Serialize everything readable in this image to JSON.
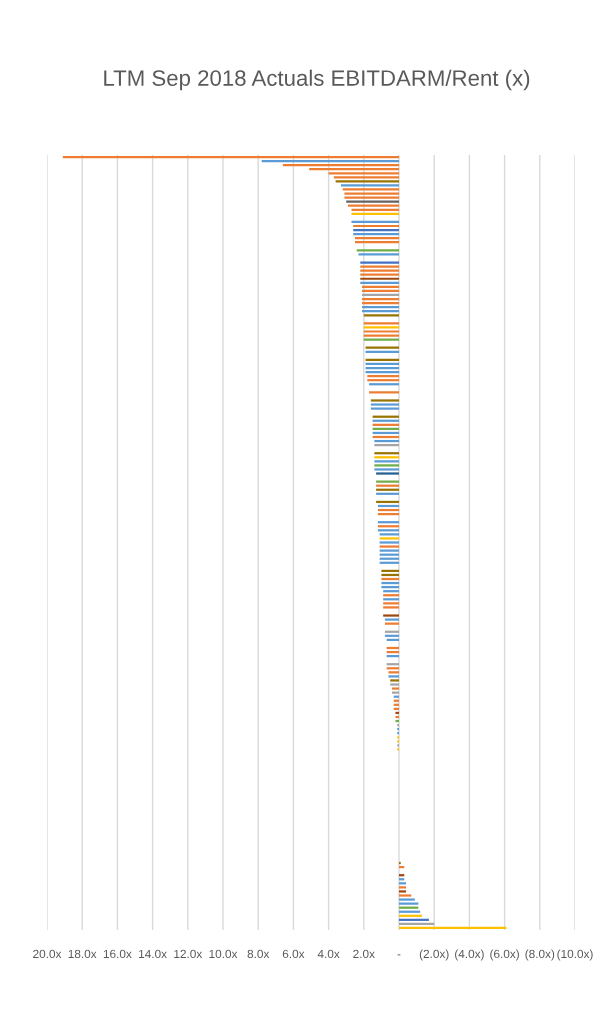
{
  "chart_data": {
    "type": "bar",
    "orientation": "horizontal",
    "title": "LTM Sep 2018 Actuals EBITDARM/Rent (x)",
    "categories": [
      null,
      null,
      null,
      null,
      null,
      null,
      null,
      null,
      null,
      null,
      null,
      null,
      null,
      null,
      null,
      null,
      null,
      null,
      null,
      null,
      null,
      null,
      null,
      null,
      null,
      null,
      null,
      null,
      null,
      null,
      null,
      null,
      null,
      null,
      null,
      null,
      null,
      null,
      null,
      null,
      null,
      null,
      null,
      null,
      null,
      null,
      null,
      null,
      null,
      null,
      null,
      null,
      null,
      null,
      null,
      null,
      null,
      null,
      null,
      null,
      null,
      null,
      null,
      null,
      null,
      null,
      null,
      null,
      null,
      null,
      null,
      null,
      null,
      null,
      null,
      null,
      null,
      null,
      null,
      null,
      null,
      null,
      null,
      null,
      null,
      null,
      null,
      null,
      null,
      null,
      null,
      null,
      null,
      null,
      null,
      null,
      null,
      null,
      null,
      null,
      null,
      null,
      null,
      null,
      null,
      null,
      null,
      null,
      null,
      null,
      null,
      null,
      null,
      null,
      null,
      null,
      null,
      null,
      null,
      null,
      null,
      null,
      null,
      null,
      null,
      null,
      null,
      null,
      null,
      null,
      null,
      null,
      null,
      null,
      null,
      null,
      null,
      null,
      null,
      null,
      null,
      null,
      null,
      null,
      null,
      null,
      null,
      null,
      null,
      null,
      null,
      null,
      null,
      null,
      null,
      null,
      null,
      null,
      null,
      null,
      null,
      null,
      null,
      null,
      null,
      null,
      null,
      null,
      null,
      null,
      null,
      null,
      null,
      null,
      null,
      null,
      null,
      null,
      null,
      null,
      null,
      null,
      null,
      null,
      null,
      null,
      null,
      null,
      null,
      null,
      null
    ],
    "values": [
      19.1,
      7.8,
      6.6,
      5.1,
      4.0,
      3.7,
      3.6,
      3.3,
      3.2,
      3.1,
      3.1,
      3.0,
      2.9,
      2.7,
      2.7,
      null,
      2.7,
      2.6,
      2.6,
      2.6,
      2.5,
      2.5,
      null,
      2.4,
      2.3,
      null,
      2.2,
      2.2,
      2.2,
      2.2,
      2.2,
      2.2,
      2.1,
      2.1,
      2.1,
      2.1,
      2.1,
      2.1,
      2.1,
      2.0,
      null,
      2.0,
      2.0,
      2.0,
      2.0,
      2.0,
      null,
      1.9,
      1.9,
      null,
      1.9,
      1.9,
      1.9,
      1.9,
      1.8,
      1.8,
      1.7,
      null,
      1.7,
      null,
      1.6,
      1.6,
      1.6,
      null,
      1.5,
      1.5,
      1.5,
      1.5,
      1.5,
      1.5,
      1.4,
      1.4,
      null,
      1.4,
      1.4,
      1.4,
      1.4,
      1.4,
      1.3,
      null,
      1.3,
      1.3,
      1.3,
      1.3,
      null,
      1.3,
      1.2,
      1.2,
      1.2,
      null,
      1.2,
      1.2,
      1.2,
      1.1,
      1.1,
      1.1,
      1.1,
      1.1,
      1.1,
      1.1,
      1.1,
      null,
      1.0,
      1.0,
      1.0,
      1.0,
      1.0,
      0.9,
      0.9,
      0.9,
      0.9,
      0.9,
      null,
      0.9,
      0.8,
      0.8,
      null,
      0.8,
      0.8,
      0.7,
      null,
      0.7,
      0.7,
      0.7,
      null,
      0.7,
      0.7,
      0.6,
      0.6,
      0.5,
      0.5,
      0.4,
      0.4,
      0.3,
      0.3,
      0.3,
      0.3,
      0.2,
      0.2,
      0.2,
      0.1,
      0.1,
      0.1,
      0.1,
      0.1,
      0.1,
      0.1,
      null,
      null,
      null,
      null,
      null,
      null,
      null,
      null,
      null,
      null,
      null,
      null,
      null,
      null,
      null,
      null,
      null,
      null,
      null,
      null,
      null,
      null,
      null,
      null,
      null,
      null,
      null,
      -0.1,
      -0.3,
      null,
      -0.3,
      -0.3,
      -0.4,
      -0.4,
      -0.4,
      -0.7,
      -0.9,
      -1.1,
      -1.1,
      -1.2,
      -1.3,
      -1.7,
      -2.0,
      -6.1
    ],
    "colors": [
      "#ed7d31",
      "#5b9bd5",
      "#ed7d31",
      "#ed7d31",
      "#ed7d31",
      "#ed7d31",
      "#997300",
      "#5b9bd5",
      "#ed7d31",
      "#ed7d31",
      "#ed7d31",
      "#636363",
      "#ed7d31",
      "#ed7d31",
      "#ffc000",
      null,
      "#5b9bd5",
      "#ed7d31",
      "#4472c4",
      "#5b9bd5",
      "#ed7d31",
      "#ed7d31",
      null,
      "#70ad47",
      "#5b9bd5",
      null,
      "#4472c4",
      "#ed7d31",
      "#ed7d31",
      "#ed7d31",
      "#9e480e",
      "#5b9bd5",
      "#ed7d31",
      "#ed7d31",
      "#a5a5a5",
      "#ed7d31",
      "#ed7d31",
      "#5b9bd5",
      "#5b9bd5",
      "#997300",
      null,
      "#ed7d31",
      "#ffc000",
      "#ed7d31",
      "#ed7d31",
      "#70ad47",
      null,
      "#997300",
      "#5b9bd5",
      null,
      "#997300",
      "#5b9bd5",
      "#5b9bd5",
      "#5b9bd5",
      "#ed7d31",
      "#ed7d31",
      "#5b9bd5",
      null,
      "#ed7d31",
      null,
      "#997300",
      "#5b9bd5",
      "#5b9bd5",
      null,
      "#997300",
      "#5b9bd5",
      "#ed7d31",
      "#70ad47",
      "#5b9bd5",
      "#ed7d31",
      "#5b9bd5",
      "#a5a5a5",
      null,
      "#997300",
      "#ffc000",
      "#5b9bd5",
      "#70ad47",
      "#5b9bd5",
      "#255e91",
      null,
      "#70ad47",
      "#ed7d31",
      "#997300",
      "#5b9bd5",
      null,
      "#997300",
      "#5b9bd5",
      "#ed7d31",
      "#ed7d31",
      null,
      "#5b9bd5",
      "#ed7d31",
      "#5b9bd5",
      "#5b9bd5",
      "#ffc000",
      "#5b9bd5",
      "#ed7d31",
      "#5b9bd5",
      "#5b9bd5",
      "#5b9bd5",
      "#5b9bd5",
      null,
      "#997300",
      "#997300",
      "#ed7d31",
      "#5b9bd5",
      "#5b9bd5",
      "#5b9bd5",
      "#ed7d31",
      "#5b9bd5",
      "#ed7d31",
      "#ed7d31",
      null,
      "#9e480e",
      "#5b9bd5",
      "#ed7d31",
      null,
      "#a5a5a5",
      "#5b9bd5",
      "#5b9bd5",
      null,
      "#ed7d31",
      "#ed7d31",
      "#5b9bd5",
      null,
      "#a5a5a5",
      "#ed7d31",
      "#ed7d31",
      "#5b9bd5",
      "#997300",
      "#a5a5a5",
      "#ed7d31",
      "#a5a5a5",
      "#5b9bd5",
      "#ed7d31",
      "#ed7d31",
      "#ed7d31",
      "#9e480e",
      "#ed7d31",
      "#70ad47",
      "#a5a5a5",
      "#5b9bd5",
      "#5b9bd5",
      "#ffc000",
      "#ffc000",
      "#a5a5a5",
      "#ffc000",
      null,
      null,
      null,
      null,
      null,
      null,
      null,
      null,
      null,
      null,
      null,
      null,
      null,
      null,
      null,
      null,
      null,
      null,
      null,
      null,
      null,
      null,
      null,
      null,
      null,
      null,
      null,
      "#997300",
      "#ed7d31",
      null,
      "#9e480e",
      "#5b9bd5",
      "#5b9bd5",
      "#ed7d31",
      "#9e480e",
      "#ed7d31",
      "#5b9bd5",
      "#5b9bd5",
      "#70ad47",
      "#5b9bd5",
      "#ffc000",
      "#4472c4",
      "#a5a5a5",
      "#ffc000"
    ],
    "xlim": [
      20,
      -10
    ],
    "xticks": [
      {
        "value": 20,
        "label": "20.0x"
      },
      {
        "value": 18,
        "label": "18.0x"
      },
      {
        "value": 16,
        "label": "16.0x"
      },
      {
        "value": 14,
        "label": "14.0x"
      },
      {
        "value": 12,
        "label": "12.0x"
      },
      {
        "value": 10,
        "label": "10.0x"
      },
      {
        "value": 8,
        "label": "8.0x"
      },
      {
        "value": 6,
        "label": "6.0x"
      },
      {
        "value": 4,
        "label": "4.0x"
      },
      {
        "value": 2,
        "label": "2.0x"
      },
      {
        "value": 0,
        "label": "-"
      },
      {
        "value": -2,
        "label": "(2.0x)"
      },
      {
        "value": -4,
        "label": "(4.0x)"
      },
      {
        "value": -6,
        "label": "(6.0x)"
      },
      {
        "value": -8,
        "label": "(8.0x)"
      },
      {
        "value": -10,
        "label": "(10.0x)"
      }
    ],
    "grid": "x",
    "tick_labels": "x"
  }
}
